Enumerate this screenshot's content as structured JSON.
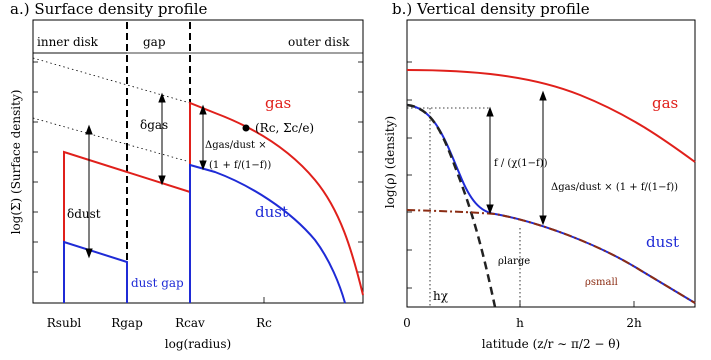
{
  "panel_a": {
    "title": "a.) Surface density profile",
    "regions": {
      "inner": "inner disk",
      "gap": "gap",
      "outer": "outer disk"
    },
    "series": {
      "gas": "gas",
      "dust": "dust",
      "dust_gap": "dust gap"
    },
    "annotations": {
      "delta_gas": "δgas",
      "delta_dust": "δdust",
      "delta_gas_dust_1": "Δgas/dust ×",
      "delta_gas_dust_2": "(1 + f/(1−f))",
      "rc_point": "(Rc, Σc/e)"
    },
    "xticks": [
      "Rsubl",
      "Rgap",
      "Rcav",
      "Rc"
    ],
    "xlabel": "log(radius)",
    "ylabel": "log(Σ)  (Surface density)"
  },
  "panel_b": {
    "title": "b.) Vertical density profile",
    "series": {
      "gas": "gas",
      "dust": "dust",
      "rho_large": "ρlarge",
      "rho_small": "ρsmall"
    },
    "annotations": {
      "frac": "f / (χ(1−f))",
      "delta_full": "Δgas/dust × (1 + f/(1−f))",
      "hchi": "hχ"
    },
    "xticks": [
      "0",
      "h",
      "2h"
    ],
    "xlabel": "latitude  (z/r ∼ π/2 − θ)",
    "ylabel": "log(ρ)  (density)"
  },
  "colors": {
    "gas": "#e0201b",
    "dust": "#1f2bd6",
    "small": "#8b2c13"
  }
}
